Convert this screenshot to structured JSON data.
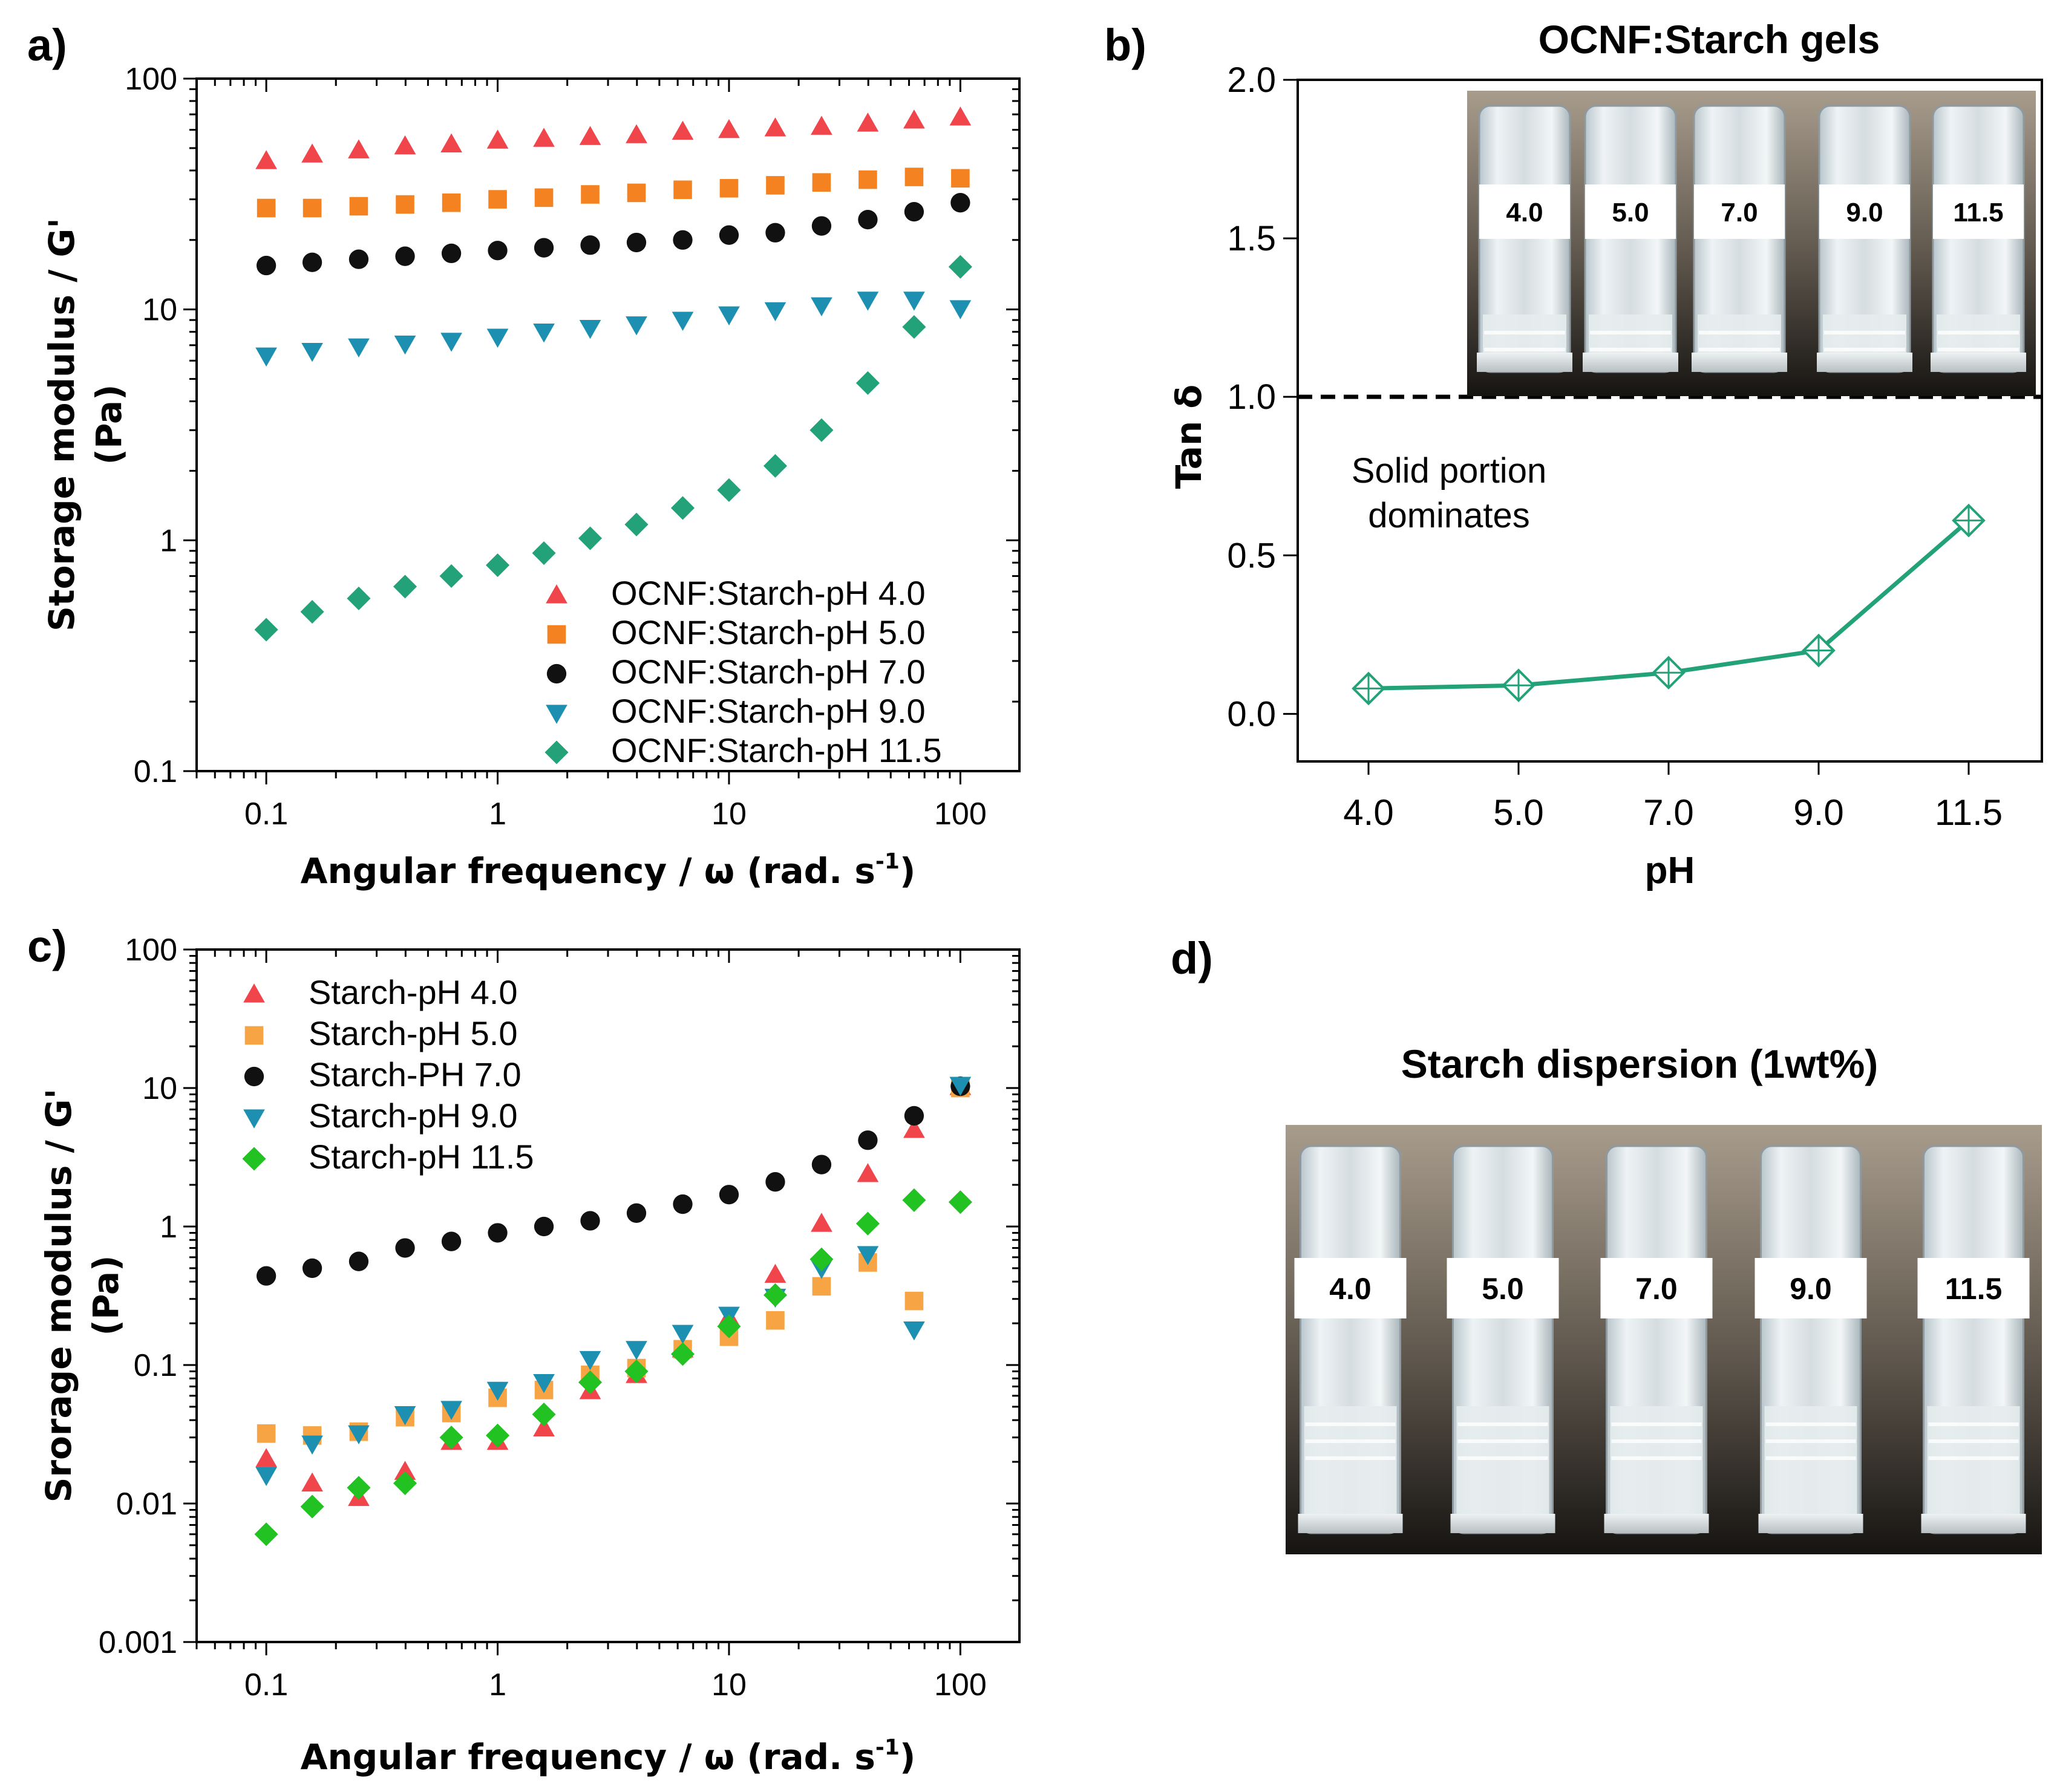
{
  "panels": {
    "a": {
      "label": "a)"
    },
    "b": {
      "label": "b)"
    },
    "c": {
      "label": "c)"
    },
    "d": {
      "label": "d)"
    }
  },
  "colors": {
    "pH 4.0": "#f0454b",
    "pH 5.0": "#f58220",
    "pH 7.0": "#111111",
    "pH 9.0": "#1d8fb0",
    "pH 11.5": "#23a279",
    "c_pH 5.0": "#f7a444",
    "c_pH 11.5": "#22c222"
  },
  "chart_data": [
    {
      "id": "a",
      "type": "scatter",
      "title": "",
      "xlabel": "Angular frequency / ω (rad. s",
      "xlabel_sup": "-1",
      "xlabel_close": ")",
      "ylabel_line1": "Storage modulus / G'",
      "ylabel_line2": "(Pa)",
      "xscale": "log",
      "yscale": "log",
      "xlim": [
        0.05,
        180
      ],
      "ylim": [
        0.1,
        100
      ],
      "xticks": [
        0.1,
        1,
        10,
        100
      ],
      "xtick_labels": [
        "0.1",
        "1",
        "10",
        "100"
      ],
      "yticks": [
        0.1,
        1,
        10,
        100
      ],
      "ytick_labels": [
        "0.1",
        "1",
        "10",
        "100"
      ],
      "legend_position": "bottom-right",
      "x": [
        0.1,
        0.158,
        0.251,
        0.398,
        0.631,
        1,
        1.585,
        2.512,
        3.981,
        6.31,
        10,
        15.85,
        25.12,
        39.81,
        63.1,
        100
      ],
      "series": [
        {
          "name": "OCNF:Starch-pH 4.0",
          "color_key": "pH 4.0",
          "marker": "triangle-up",
          "values": [
            44,
            47,
            49,
            51,
            52,
            54,
            55,
            56,
            57,
            59,
            60,
            61,
            62,
            64,
            66,
            68
          ]
        },
        {
          "name": "OCNF:Starch-pH 5.0",
          "color_key": "pH 5.0",
          "marker": "square",
          "values": [
            27.5,
            27.5,
            28,
            28.5,
            29,
            30,
            30.5,
            31.5,
            32,
            33,
            33.5,
            34.5,
            35.5,
            36.5,
            37.5,
            37
          ]
        },
        {
          "name": "OCNF:Starch-pH 7.0",
          "color_key": "pH 7.0",
          "marker": "circle",
          "values": [
            15.5,
            16,
            16.5,
            17,
            17.5,
            18,
            18.5,
            19,
            19.5,
            20,
            21,
            21.5,
            23,
            24.5,
            26.5,
            29
          ]
        },
        {
          "name": "OCNF:Starch-pH 9.0",
          "color_key": "pH 9.0",
          "marker": "triangle-down",
          "values": [
            6.3,
            6.6,
            6.9,
            7.1,
            7.3,
            7.6,
            8.0,
            8.3,
            8.6,
            9.0,
            9.5,
            9.9,
            10.4,
            11.0,
            11.0,
            10.1
          ]
        },
        {
          "name": "OCNF:Starch-pH 11.5",
          "color_key": "pH 11.5",
          "marker": "diamond",
          "values": [
            0.41,
            0.49,
            0.56,
            0.63,
            0.7,
            0.78,
            0.88,
            1.02,
            1.17,
            1.38,
            1.65,
            2.1,
            3.0,
            4.8,
            8.4,
            15.3
          ]
        }
      ]
    },
    {
      "id": "b",
      "type": "line",
      "title": "OCNF:Starch gels",
      "xlabel": "pH",
      "ylabel": "Tan δ",
      "categories": [
        "4.0",
        "5.0",
        "7.0",
        "9.0",
        "11.5"
      ],
      "values": [
        0.08,
        0.09,
        0.13,
        0.2,
        0.61
      ],
      "ylim": [
        -0.15,
        2.0
      ],
      "yticks": [
        0.0,
        0.5,
        1.0,
        1.5,
        2.0
      ],
      "ytick_labels": [
        "0.0",
        "0.5",
        "1.0",
        "1.5",
        "2.0"
      ],
      "reference_line": {
        "y": 1.0,
        "style": "dashed"
      },
      "annotation_line1": "Solid portion",
      "annotation_line2": "dominates",
      "color_key": "pH 11.5",
      "marker": "crossed-diamond",
      "photo_vial_labels": [
        "4.0",
        "5.0",
        "7.0",
        "9.0",
        "11.5"
      ]
    },
    {
      "id": "c",
      "type": "scatter",
      "title": "",
      "xlabel": "Angular frequency / ω (rad. s",
      "xlabel_sup": "-1",
      "xlabel_close": ")",
      "ylabel_line1": "Srorage modulus / G'",
      "ylabel_line2": "(Pa)",
      "xscale": "log",
      "yscale": "log",
      "xlim": [
        0.05,
        180
      ],
      "ylim": [
        0.001,
        100
      ],
      "xticks": [
        0.1,
        1,
        10,
        100
      ],
      "xtick_labels": [
        "0.1",
        "1",
        "10",
        "100"
      ],
      "yticks": [
        0.001,
        0.01,
        0.1,
        1,
        10,
        100
      ],
      "ytick_labels": [
        "0.001",
        "0.01",
        "0.1",
        "1",
        "10",
        "100"
      ],
      "legend_position": "top-left",
      "x": [
        0.1,
        0.158,
        0.251,
        0.398,
        0.631,
        1,
        1.585,
        2.512,
        3.981,
        6.31,
        10,
        15.85,
        25.12,
        39.81,
        63.1,
        100
      ],
      "series": [
        {
          "name": "Starch-pH 4.0",
          "color_key": "pH 4.0",
          "marker": "triangle-up",
          "values": [
            0.021,
            0.014,
            0.011,
            0.017,
            0.028,
            0.028,
            0.035,
            0.065,
            0.085,
            0.13,
            0.22,
            0.45,
            1.05,
            2.4,
            5.0,
            10.2
          ]
        },
        {
          "name": "Starch-pH 5.0",
          "color_key": "c_pH 5.0",
          "marker": "square",
          "values": [
            0.032,
            0.031,
            0.033,
            0.042,
            0.045,
            0.058,
            0.066,
            0.085,
            0.095,
            0.13,
            0.16,
            0.21,
            0.37,
            0.55,
            0.29,
            10.0
          ]
        },
        {
          "name": "Starch-PH 7.0",
          "color_key": "pH 7.0",
          "marker": "circle",
          "values": [
            0.44,
            0.5,
            0.56,
            0.7,
            0.78,
            0.9,
            1.0,
            1.1,
            1.25,
            1.45,
            1.7,
            2.1,
            2.8,
            4.2,
            6.3,
            10.3
          ]
        },
        {
          "name": "Starch-pH 9.0",
          "color_key": "pH 9.0",
          "marker": "triangle-down",
          "values": [
            0.016,
            0.027,
            0.032,
            0.044,
            0.048,
            0.066,
            0.075,
            0.11,
            0.13,
            0.17,
            0.23,
            0.31,
            0.5,
            0.63,
            0.18,
            10.5
          ]
        },
        {
          "name": "Starch-pH 11.5",
          "color_key": "c_pH 11.5",
          "marker": "diamond",
          "values": [
            0.006,
            0.0095,
            0.013,
            0.014,
            0.03,
            0.031,
            0.044,
            0.075,
            0.09,
            0.12,
            0.19,
            0.32,
            0.58,
            1.05,
            1.55,
            1.5
          ]
        }
      ]
    }
  ],
  "photo_d": {
    "title": "Starch dispersion (1wt%)",
    "vial_labels": [
      "4.0",
      "5.0",
      "7.0",
      "9.0",
      "11.5"
    ]
  }
}
